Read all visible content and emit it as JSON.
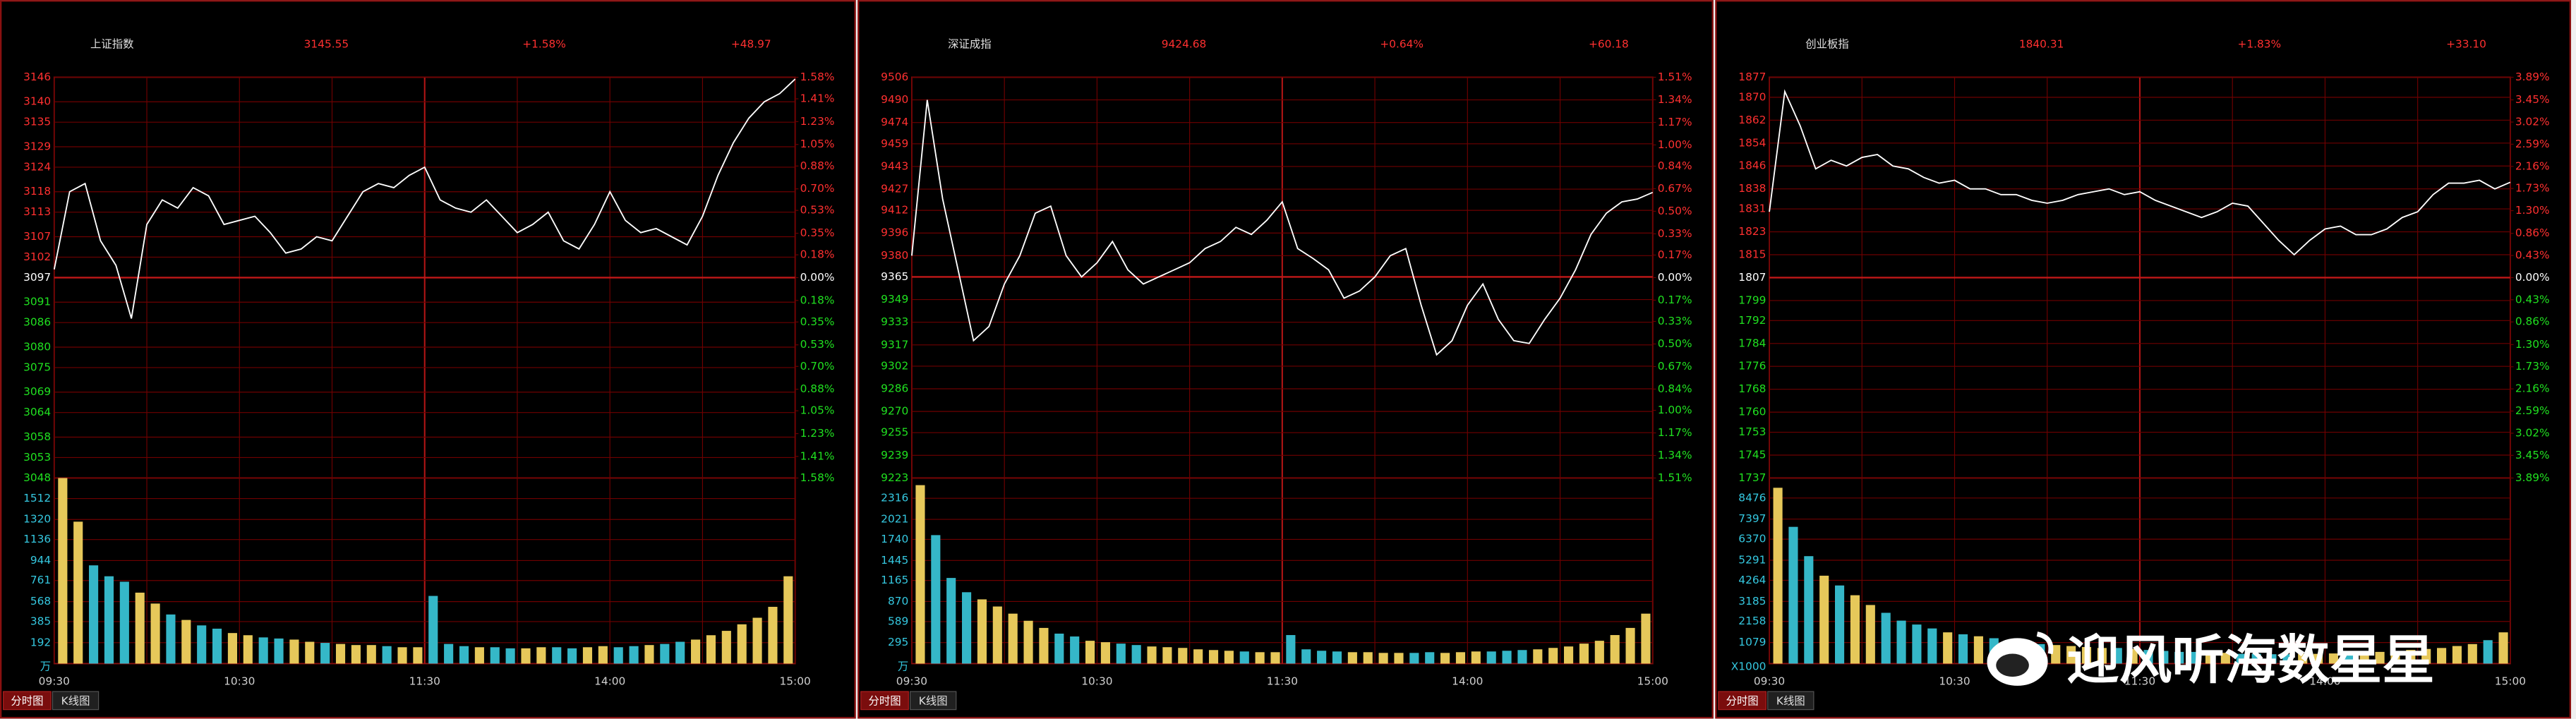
{
  "chart_data": [
    {
      "type": "line",
      "title": "上证指数",
      "price": 3145.55,
      "change_pct": "+1.58%",
      "change": "+48.97",
      "color": "#ffffff",
      "x": [
        0,
        5,
        10,
        15,
        20,
        25,
        30,
        35,
        40,
        45,
        50,
        55,
        60,
        65,
        70,
        75,
        80,
        85,
        90,
        95,
        100,
        105,
        110,
        115,
        120,
        125,
        130,
        135,
        140,
        145,
        150,
        155,
        160,
        165,
        170,
        175,
        180,
        185,
        190,
        195,
        200,
        205,
        210,
        215,
        220,
        225,
        230,
        235,
        240
      ],
      "values": [
        3099,
        3118,
        3120,
        3106,
        3100,
        3087,
        3110,
        3116,
        3114,
        3119,
        3117,
        3110,
        3111,
        3112,
        3108,
        3103,
        3104,
        3107,
        3106,
        3112,
        3118,
        3120,
        3119,
        3122,
        3124,
        3116,
        3114,
        3113,
        3116,
        3112,
        3108,
        3110,
        3113,
        3106,
        3104,
        3110,
        3118,
        3111,
        3108,
        3109,
        3107,
        3105,
        3112,
        3122,
        3130,
        3136,
        3140,
        3142,
        3145.55
      ],
      "xlim": [
        0,
        240
      ],
      "xticks": [
        {
          "value": 0,
          "label": "09:30"
        },
        {
          "value": 60,
          "label": "10:30"
        },
        {
          "value": 120,
          "label": "11:30"
        },
        {
          "value": 180,
          "label": "14:00"
        },
        {
          "value": 240,
          "label": "15:00"
        }
      ],
      "ylim": [
        3048,
        3146
      ],
      "yticks": [
        3146,
        3140,
        3135,
        3129,
        3124,
        3118,
        3113,
        3107,
        3102,
        3097,
        3091,
        3086,
        3080,
        3075,
        3069,
        3064,
        3058,
        3053,
        3048
      ],
      "y2lim": [
        -1.58,
        1.58
      ],
      "y2ticks": [
        {
          "value": 1.58,
          "label": "1.58%"
        },
        {
          "value": 1.41,
          "label": "1.41%"
        },
        {
          "value": 1.23,
          "label": "1.23%"
        },
        {
          "value": 1.05,
          "label": "1.05%"
        },
        {
          "value": 0.88,
          "label": "0.88%"
        },
        {
          "value": 0.7,
          "label": "0.70%"
        },
        {
          "value": 0.53,
          "label": "0.53%"
        },
        {
          "value": 0.35,
          "label": "0.35%"
        },
        {
          "value": 0.18,
          "label": "0.18%"
        },
        {
          "value": 0,
          "label": "0.00%"
        },
        {
          "value": -0.18,
          "label": "0.18%"
        },
        {
          "value": -0.35,
          "label": "0.35%"
        },
        {
          "value": -0.53,
          "label": "0.53%"
        },
        {
          "value": -0.7,
          "label": "0.70%"
        },
        {
          "value": -0.88,
          "label": "0.88%"
        },
        {
          "value": -1.05,
          "label": "1.05%"
        },
        {
          "value": -1.23,
          "label": "1.23%"
        },
        {
          "value": -1.41,
          "label": "1.41%"
        },
        {
          "value": -1.58,
          "label": "1.58%"
        }
      ],
      "volume": {
        "type": "bar",
        "unit": "万",
        "color_up": "#e6c85a",
        "color_down": "#35b7c8",
        "x": [
          5,
          10,
          15,
          20,
          25,
          30,
          35,
          40,
          45,
          50,
          55,
          60,
          65,
          70,
          75,
          80,
          85,
          90,
          95,
          100,
          105,
          110,
          115,
          120,
          125,
          130,
          135,
          140,
          145,
          150,
          155,
          160,
          165,
          170,
          175,
          180,
          185,
          190,
          195,
          200,
          205,
          210,
          215,
          220,
          225,
          230,
          235,
          240
        ],
        "values": [
          1700,
          1300,
          900,
          800,
          750,
          650,
          550,
          450,
          400,
          350,
          320,
          280,
          260,
          240,
          230,
          220,
          200,
          190,
          180,
          170,
          170,
          160,
          150,
          150,
          620,
          180,
          160,
          150,
          150,
          140,
          140,
          150,
          150,
          140,
          150,
          160,
          150,
          160,
          170,
          180,
          200,
          220,
          260,
          300,
          360,
          420,
          520,
          800
        ],
        "ylim": [
          0,
          1700
        ],
        "yticks": [
          192,
          385,
          568,
          761,
          944,
          1136,
          1320,
          1512
        ]
      }
    },
    {
      "type": "line",
      "title": "深证成指",
      "price": 9424.68,
      "change_pct": "+0.64%",
      "change": "+60.18",
      "color": "#ffffff",
      "x": [
        0,
        5,
        10,
        15,
        20,
        25,
        30,
        35,
        40,
        45,
        50,
        55,
        60,
        65,
        70,
        75,
        80,
        85,
        90,
        95,
        100,
        105,
        110,
        115,
        120,
        125,
        130,
        135,
        140,
        145,
        150,
        155,
        160,
        165,
        170,
        175,
        180,
        185,
        190,
        195,
        200,
        205,
        210,
        215,
        220,
        225,
        230,
        235,
        240
      ],
      "values": [
        9380,
        9490,
        9420,
        9370,
        9320,
        9330,
        9360,
        9380,
        9410,
        9415,
        9380,
        9365,
        9375,
        9390,
        9370,
        9360,
        9365,
        9370,
        9375,
        9385,
        9390,
        9400,
        9395,
        9405,
        9418,
        9385,
        9378,
        9370,
        9350,
        9355,
        9365,
        9380,
        9385,
        9345,
        9310,
        9320,
        9345,
        9360,
        9335,
        9320,
        9318,
        9335,
        9350,
        9370,
        9395,
        9410,
        9418,
        9420,
        9424.68
      ],
      "xlim": [
        0,
        240
      ],
      "xticks": [
        {
          "value": 0,
          "label": "09:30"
        },
        {
          "value": 60,
          "label": "10:30"
        },
        {
          "value": 120,
          "label": "11:30"
        },
        {
          "value": 180,
          "label": "14:00"
        },
        {
          "value": 240,
          "label": "15:00"
        }
      ],
      "ylim": [
        9223,
        9506
      ],
      "yticks": [
        9506,
        9490,
        9474,
        9459,
        9443,
        9427,
        9412,
        9396,
        9380,
        9365,
        9349,
        9333,
        9317,
        9302,
        9286,
        9270,
        9255,
        9239,
        9223
      ],
      "y2lim": [
        -1.51,
        1.51
      ],
      "y2ticks": [
        {
          "value": 1.51,
          "label": "1.51%"
        },
        {
          "value": 1.34,
          "label": "1.34%"
        },
        {
          "value": 1.17,
          "label": "1.17%"
        },
        {
          "value": 1.0,
          "label": "1.00%"
        },
        {
          "value": 0.84,
          "label": "0.84%"
        },
        {
          "value": 0.67,
          "label": "0.67%"
        },
        {
          "value": 0.5,
          "label": "0.50%"
        },
        {
          "value": 0.33,
          "label": "0.33%"
        },
        {
          "value": 0.17,
          "label": "0.17%"
        },
        {
          "value": 0,
          "label": "0.00%"
        },
        {
          "value": -0.17,
          "label": "0.17%"
        },
        {
          "value": -0.33,
          "label": "0.33%"
        },
        {
          "value": -0.5,
          "label": "0.50%"
        },
        {
          "value": -0.67,
          "label": "0.67%"
        },
        {
          "value": -0.84,
          "label": "0.84%"
        },
        {
          "value": -1.0,
          "label": "1.00%"
        },
        {
          "value": -1.17,
          "label": "1.17%"
        },
        {
          "value": -1.34,
          "label": "1.34%"
        },
        {
          "value": -1.51,
          "label": "1.51%"
        }
      ],
      "volume": {
        "type": "bar",
        "unit": "万",
        "color_up": "#e6c85a",
        "color_down": "#35b7c8",
        "x": [
          5,
          10,
          15,
          20,
          25,
          30,
          35,
          40,
          45,
          50,
          55,
          60,
          65,
          70,
          75,
          80,
          85,
          90,
          95,
          100,
          105,
          110,
          115,
          120,
          125,
          130,
          135,
          140,
          145,
          150,
          155,
          160,
          165,
          170,
          175,
          180,
          185,
          190,
          195,
          200,
          205,
          210,
          215,
          220,
          225,
          230,
          235,
          240
        ],
        "values": [
          2500,
          1800,
          1200,
          1000,
          900,
          800,
          700,
          600,
          500,
          420,
          380,
          320,
          300,
          280,
          260,
          240,
          230,
          220,
          200,
          190,
          180,
          170,
          160,
          160,
          400,
          200,
          180,
          170,
          160,
          160,
          150,
          150,
          150,
          160,
          150,
          160,
          170,
          170,
          180,
          190,
          200,
          220,
          240,
          280,
          320,
          400,
          500,
          700
        ],
        "ylim": [
          0,
          2600
        ],
        "yticks": [
          295,
          589,
          870,
          1165,
          1445,
          1740,
          2021,
          2316
        ]
      }
    },
    {
      "type": "line",
      "title": "创业板指",
      "price": 1840.31,
      "change_pct": "+1.83%",
      "change": "+33.10",
      "color": "#ffffff",
      "x": [
        0,
        5,
        10,
        15,
        20,
        25,
        30,
        35,
        40,
        45,
        50,
        55,
        60,
        65,
        70,
        75,
        80,
        85,
        90,
        95,
        100,
        105,
        110,
        115,
        120,
        125,
        130,
        135,
        140,
        145,
        150,
        155,
        160,
        165,
        170,
        175,
        180,
        185,
        190,
        195,
        200,
        205,
        210,
        215,
        220,
        225,
        230,
        235,
        240
      ],
      "values": [
        1830,
        1872,
        1860,
        1845,
        1848,
        1846,
        1849,
        1850,
        1846,
        1845,
        1842,
        1840,
        1841,
        1838,
        1838,
        1836,
        1836,
        1834,
        1833,
        1834,
        1836,
        1837,
        1838,
        1836,
        1837,
        1834,
        1832,
        1830,
        1828,
        1830,
        1833,
        1832,
        1826,
        1820,
        1815,
        1820,
        1824,
        1825,
        1822,
        1822,
        1824,
        1828,
        1830,
        1836,
        1840,
        1840,
        1841,
        1838,
        1840.31
      ],
      "xlim": [
        0,
        240
      ],
      "xticks": [
        {
          "value": 0,
          "label": "09:30"
        },
        {
          "value": 60,
          "label": "10:30"
        },
        {
          "value": 120,
          "label": "11:30"
        },
        {
          "value": 180,
          "label": "14:00"
        },
        {
          "value": 240,
          "label": "15:00"
        }
      ],
      "ylim": [
        1737,
        1877
      ],
      "yticks": [
        1877,
        1870,
        1862,
        1854,
        1846,
        1838,
        1831,
        1823,
        1815,
        1807,
        1799,
        1792,
        1784,
        1776,
        1768,
        1760,
        1753,
        1745,
        1737
      ],
      "y2lim": [
        -3.89,
        3.89
      ],
      "y2ticks": [
        {
          "value": 3.89,
          "label": "3.89%"
        },
        {
          "value": 3.45,
          "label": "3.45%"
        },
        {
          "value": 3.02,
          "label": "3.02%"
        },
        {
          "value": 2.59,
          "label": "2.59%"
        },
        {
          "value": 2.16,
          "label": "2.16%"
        },
        {
          "value": 1.73,
          "label": "1.73%"
        },
        {
          "value": 1.3,
          "label": "1.30%"
        },
        {
          "value": 0.86,
          "label": "0.86%"
        },
        {
          "value": 0.43,
          "label": "0.43%"
        },
        {
          "value": 0,
          "label": "0.00%"
        },
        {
          "value": -0.43,
          "label": "0.43%"
        },
        {
          "value": -0.86,
          "label": "0.86%"
        },
        {
          "value": -1.3,
          "label": "1.30%"
        },
        {
          "value": -1.73,
          "label": "1.73%"
        },
        {
          "value": -2.16,
          "label": "2.16%"
        },
        {
          "value": -2.59,
          "label": "2.59%"
        },
        {
          "value": -3.02,
          "label": "3.02%"
        },
        {
          "value": -3.45,
          "label": "3.45%"
        },
        {
          "value": -3.89,
          "label": "3.89%"
        }
      ],
      "volume": {
        "type": "bar",
        "unit": "X1000",
        "color_up": "#e6c85a",
        "color_down": "#35b7c8",
        "x": [
          5,
          10,
          15,
          20,
          25,
          30,
          35,
          40,
          45,
          50,
          55,
          60,
          65,
          70,
          75,
          80,
          85,
          90,
          95,
          100,
          105,
          110,
          115,
          120,
          125,
          130,
          135,
          140,
          145,
          150,
          155,
          160,
          165,
          170,
          175,
          180,
          185,
          190,
          195,
          200,
          205,
          210,
          215,
          220,
          225,
          230,
          235,
          240
        ],
        "values": [
          9000,
          7000,
          5500,
          4500,
          4000,
          3500,
          3000,
          2600,
          2200,
          2000,
          1800,
          1600,
          1500,
          1400,
          1300,
          1200,
          1100,
          1000,
          950,
          900,
          850,
          800,
          800,
          750,
          700,
          650,
          600,
          600,
          550,
          550,
          500,
          500,
          480,
          480,
          500,
          500,
          520,
          540,
          560,
          600,
          650,
          700,
          750,
          800,
          900,
          1000,
          1200,
          1600
        ],
        "ylim": [
          0,
          9500
        ],
        "yticks": [
          1079,
          2158,
          3185,
          4264,
          5291,
          6370,
          7397,
          8476
        ]
      }
    }
  ],
  "tabs": [
    "分时图",
    "K线图"
  ],
  "watermark": "迎风听海数星星"
}
